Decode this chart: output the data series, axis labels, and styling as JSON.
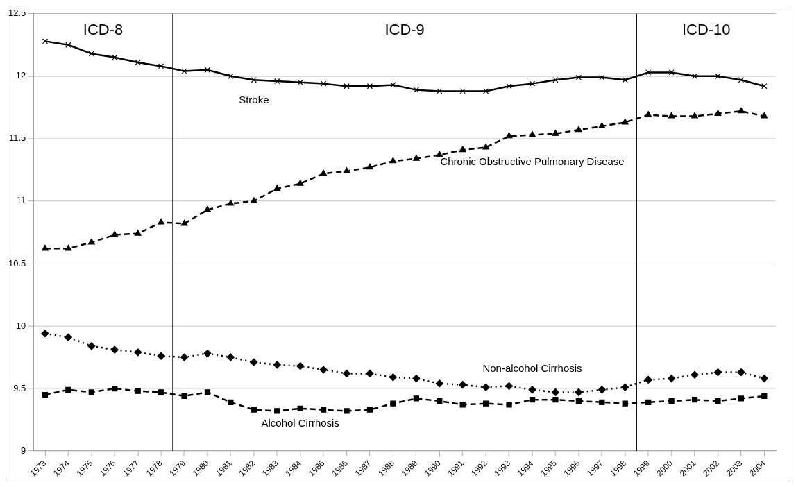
{
  "chart_data": {
    "type": "line",
    "x": [
      1973,
      1974,
      1975,
      1976,
      1977,
      1978,
      1979,
      1980,
      1981,
      1982,
      1983,
      1984,
      1985,
      1986,
      1987,
      1988,
      1989,
      1990,
      1991,
      1992,
      1993,
      1994,
      1995,
      1996,
      1997,
      1998,
      1999,
      2000,
      2001,
      2002,
      2003,
      2004
    ],
    "xlim": [
      1972.5,
      2004.5
    ],
    "xticks": [
      1973,
      1974,
      1975,
      1976,
      1977,
      1978,
      1979,
      1980,
      1981,
      1982,
      1983,
      1984,
      1985,
      1986,
      1987,
      1988,
      1989,
      1990,
      1991,
      1992,
      1993,
      1994,
      1995,
      1996,
      1997,
      1998,
      1999,
      2000,
      2001,
      2002,
      2003,
      2004
    ],
    "ylim": [
      9,
      12.5
    ],
    "yticks": [
      9,
      9.5,
      10,
      10.5,
      11,
      11.5,
      12,
      12.5
    ],
    "grid": "y",
    "legend": false,
    "series": [
      {
        "name": "Stroke",
        "color": "#000000",
        "marker": "cross",
        "line_style": "solid",
        "values": [
          12.28,
          12.25,
          12.18,
          12.15,
          12.11,
          12.08,
          12.04,
          12.05,
          12.0,
          11.97,
          11.96,
          11.95,
          11.94,
          11.92,
          11.92,
          11.93,
          11.89,
          11.88,
          11.88,
          11.88,
          11.92,
          11.94,
          11.97,
          11.99,
          11.99,
          11.97,
          12.03,
          12.03,
          12.0,
          12.0,
          11.97,
          11.92
        ]
      },
      {
        "name": "Chronic Obstructive Pulmonary Disease",
        "color": "#000000",
        "marker": "triangle",
        "line_style": "dashed",
        "values": [
          10.62,
          10.62,
          10.67,
          10.73,
          10.74,
          10.83,
          10.82,
          10.93,
          10.98,
          11.0,
          11.1,
          11.14,
          11.22,
          11.24,
          11.27,
          11.32,
          11.34,
          11.37,
          11.41,
          11.43,
          11.52,
          11.53,
          11.54,
          11.57,
          11.6,
          11.63,
          11.69,
          11.68,
          11.68,
          11.7,
          11.72,
          11.68
        ]
      },
      {
        "name": "Non-alcohol Cirrhosis",
        "color": "#000000",
        "marker": "diamond",
        "line_style": "dotted",
        "values": [
          9.94,
          9.91,
          9.84,
          9.81,
          9.79,
          9.76,
          9.75,
          9.78,
          9.75,
          9.71,
          9.69,
          9.68,
          9.65,
          9.62,
          9.62,
          9.59,
          9.58,
          9.54,
          9.53,
          9.51,
          9.52,
          9.49,
          9.47,
          9.47,
          9.49,
          9.51,
          9.57,
          9.58,
          9.61,
          9.63,
          9.63,
          9.58
        ]
      },
      {
        "name": "Alcohol Cirrhosis",
        "color": "#000000",
        "marker": "square",
        "line_style": "dashed",
        "values": [
          9.45,
          9.49,
          9.47,
          9.5,
          9.48,
          9.47,
          9.44,
          9.47,
          9.39,
          9.33,
          9.32,
          9.34,
          9.33,
          9.32,
          9.33,
          9.38,
          9.42,
          9.4,
          9.37,
          9.38,
          9.37,
          9.41,
          9.41,
          9.4,
          9.39,
          9.38,
          9.39,
          9.4,
          9.41,
          9.4,
          9.42,
          9.44
        ]
      }
    ],
    "ref_lines": [
      {
        "axis": "x",
        "value": 1978.5,
        "color": "#000000"
      },
      {
        "axis": "x",
        "value": 1998.5,
        "color": "#000000"
      }
    ],
    "bands": [
      {
        "axis": "x",
        "from": 1972.5,
        "to": 1978.5,
        "label": "ICD-8",
        "color": "#ffffff"
      },
      {
        "axis": "x",
        "from": 1978.5,
        "to": 1998.5,
        "label": "ICD-9",
        "color": "#ffffff"
      },
      {
        "axis": "x",
        "from": 1998.5,
        "to": 2004.5,
        "label": "ICD-10",
        "color": "#ffffff"
      }
    ]
  }
}
